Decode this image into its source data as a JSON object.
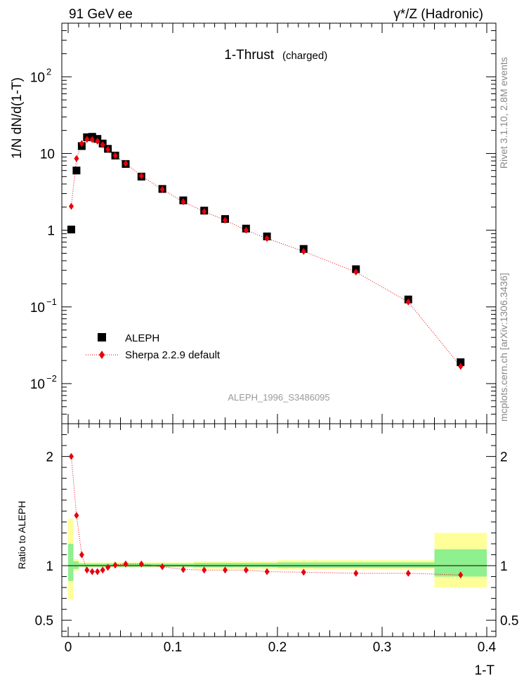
{
  "header": {
    "left": "91 GeV ee",
    "right": "γ*/Z (Hadronic)"
  },
  "side": {
    "rivet": "Rivet 3.1.10, 2.8M events",
    "mcplots": "mcplots.cern.ch [arXiv:1306.3436]"
  },
  "chart_data": [
    {
      "type": "scatter",
      "title": "1-Thrust",
      "subtitle": "(charged)",
      "watermark": "ALEPH_1996_S3486095",
      "ylabel": "1/N dN/d(1-T)",
      "yscale": "log",
      "ylim": [
        0.003,
        500
      ],
      "xlim": [
        0,
        0.4
      ],
      "y_ticks": [
        {
          "value": 0.01,
          "base": "10",
          "exp": "−2"
        },
        {
          "value": 0.1,
          "base": "10",
          "exp": "−1"
        },
        {
          "value": 1,
          "base": "1",
          "exp": ""
        },
        {
          "value": 10,
          "base": "10",
          "exp": ""
        },
        {
          "value": 100,
          "base": "10",
          "exp": "2"
        }
      ],
      "legend": {
        "position": "bottom-left",
        "entries": [
          "ALEPH",
          "Sherpa 2.2.9 default"
        ]
      },
      "series": [
        {
          "name": "ALEPH",
          "marker": "square",
          "color": "#000000",
          "x": [
            0.003,
            0.008,
            0.013,
            0.018,
            0.023,
            0.028,
            0.033,
            0.038,
            0.045,
            0.055,
            0.07,
            0.09,
            0.11,
            0.13,
            0.15,
            0.17,
            0.19,
            0.225,
            0.275,
            0.325,
            0.375
          ],
          "y": [
            1.02,
            6.0,
            12.5,
            16.3,
            16.5,
            15.5,
            13.5,
            11.5,
            9.4,
            7.3,
            5.0,
            3.45,
            2.45,
            1.8,
            1.4,
            1.05,
            0.83,
            0.57,
            0.31,
            0.125,
            0.019
          ]
        },
        {
          "name": "Sherpa 2.2.9 default",
          "marker": "diamond",
          "color": "#e8000b",
          "line": "dotted",
          "x": [
            0.003,
            0.008,
            0.013,
            0.018,
            0.023,
            0.028,
            0.033,
            0.038,
            0.045,
            0.055,
            0.07,
            0.09,
            0.11,
            0.13,
            0.15,
            0.17,
            0.19,
            0.225,
            0.275,
            0.325,
            0.375
          ],
          "y": [
            2.05,
            8.6,
            13.5,
            15.3,
            15.2,
            14.5,
            13.0,
            11.3,
            9.4,
            7.4,
            5.1,
            3.4,
            2.35,
            1.75,
            1.35,
            1.0,
            0.78,
            0.53,
            0.285,
            0.116,
            0.0168
          ]
        }
      ]
    },
    {
      "type": "scatter",
      "ylabel": "Ratio to ALEPH",
      "xlabel": "1-T",
      "ylim": [
        0.35,
        2.3
      ],
      "xlim": [
        0,
        0.4
      ],
      "y_ticks": [
        "0.5",
        "1",
        "2"
      ],
      "x_ticks": [
        "0",
        "0.1",
        "0.2",
        "0.3",
        "0.4"
      ],
      "bands": [
        {
          "x": [
            0.0,
            0.005
          ],
          "inner": [
            0.86,
            1.2
          ],
          "outer": [
            0.69,
            1.43
          ]
        },
        {
          "x": [
            0.005,
            0.01
          ],
          "inner": [
            0.97,
            1.04
          ],
          "outer": [
            0.95,
            1.06
          ]
        },
        {
          "x": [
            0.01,
            0.12
          ],
          "inner": [
            0.99,
            1.02
          ],
          "outer": [
            0.98,
            1.03
          ]
        },
        {
          "x": [
            0.12,
            0.2
          ],
          "inner": [
            0.985,
            1.025
          ],
          "outer": [
            0.97,
            1.04
          ]
        },
        {
          "x": [
            0.2,
            0.35
          ],
          "inner": [
            0.98,
            1.03
          ],
          "outer": [
            0.965,
            1.05
          ]
        },
        {
          "x": [
            0.35,
            0.4
          ],
          "inner": [
            0.9,
            1.15
          ],
          "outer": [
            0.8,
            1.3
          ]
        }
      ],
      "band_colors": {
        "inner": "#8ef08e",
        "outer": "#ffff99"
      },
      "series": [
        {
          "name": "Sherpa 2.2.9 default",
          "color": "#e8000b",
          "x": [
            0.003,
            0.008,
            0.013,
            0.018,
            0.023,
            0.028,
            0.033,
            0.038,
            0.045,
            0.055,
            0.07,
            0.09,
            0.11,
            0.13,
            0.15,
            0.17,
            0.19,
            0.225,
            0.275,
            0.325,
            0.375
          ],
          "y": [
            2.0,
            1.46,
            1.1,
            0.96,
            0.945,
            0.945,
            0.96,
            0.985,
            1.005,
            1.015,
            1.015,
            0.99,
            0.965,
            0.96,
            0.96,
            0.96,
            0.945,
            0.94,
            0.93,
            0.93,
            0.915
          ]
        }
      ]
    }
  ]
}
